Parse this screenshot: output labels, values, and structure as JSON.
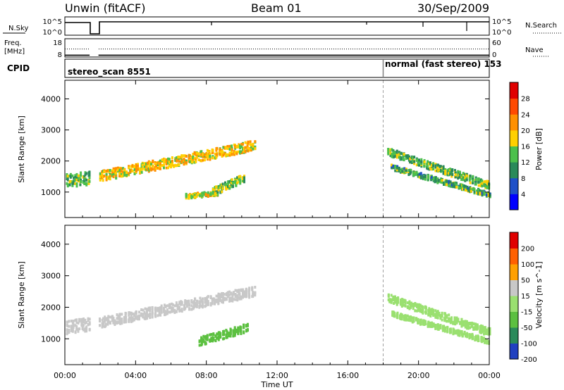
{
  "header": {
    "station": "Unwin (fitACF)",
    "beam": "Beam 01",
    "date": "30/Sep/2009"
  },
  "noise_panel": {
    "left_label": "N.Sky",
    "right_label": "N.Search",
    "left_ticks": [
      "10^5",
      "10^0"
    ],
    "right_ticks": [
      "10^5",
      "10^0"
    ]
  },
  "freq_panel": {
    "left_label_line1": "Freq.",
    "left_label_line2": "[MHz]",
    "right_label": "Nave",
    "left_ticks": [
      "18",
      "8"
    ],
    "right_ticks": [
      "60",
      "0"
    ],
    "freq_mhz": 9.5,
    "nave": 40
  },
  "cpid_panel": {
    "label": "CPID",
    "segments": [
      {
        "text": "stereo_scan 8551",
        "start_h": 0
      },
      {
        "text": "normal (fast stereo) 153",
        "start_h": 18.0
      }
    ]
  },
  "time_axis": {
    "label": "Time UT",
    "ticks": [
      "00:00",
      "04:00",
      "08:00",
      "12:00",
      "16:00",
      "20:00",
      "00:00"
    ],
    "range_h": [
      0,
      24
    ]
  },
  "data_gaps_h": [
    [
      1.4,
      1.9
    ]
  ],
  "chart_data": [
    {
      "type": "heatmap",
      "name": "power",
      "ylabel": "Slant Range [km]",
      "ylim": [
        180,
        4600
      ],
      "yticks": [
        "1000",
        "2000",
        "3000",
        "4000"
      ],
      "ytick_values": [
        1000,
        2000,
        3000,
        4000
      ],
      "colorbar": {
        "label": "Power [dB]",
        "ticks": [
          "4",
          "8",
          "12",
          "16",
          "20",
          "24",
          "28"
        ],
        "tick_values": [
          4,
          8,
          12,
          16,
          20,
          24,
          28
        ],
        "range": [
          0,
          32
        ],
        "colors": [
          "#0000ff",
          "#1e50c8",
          "#2a8a5a",
          "#4cc04c",
          "#ffd000",
          "#ff9000",
          "#ff4a00",
          "#e00000"
        ]
      },
      "bands": [
        {
          "t0": 0.0,
          "t1": 1.4,
          "r0": 1350,
          "r1": 1450,
          "w": 420,
          "v": 13
        },
        {
          "t0": 1.9,
          "t1": 10.7,
          "r0": 1500,
          "r1": 2500,
          "w": 320,
          "v": 19
        },
        {
          "t0": 6.8,
          "t1": 8.6,
          "r0": 860,
          "r1": 960,
          "w": 140,
          "v": 17
        },
        {
          "t0": 8.3,
          "t1": 10.1,
          "r0": 1000,
          "r1": 1450,
          "w": 260,
          "v": 15
        },
        {
          "t0": 18.2,
          "t1": 24.0,
          "r0": 2300,
          "r1": 1200,
          "w": 240,
          "v": 13
        },
        {
          "t0": 18.4,
          "t1": 24.0,
          "r0": 1800,
          "r1": 900,
          "w": 160,
          "v": 12
        }
      ]
    },
    {
      "type": "heatmap",
      "name": "velocity",
      "ylabel": "Slant Range [km]",
      "ylim": [
        180,
        4600
      ],
      "yticks": [
        "1000",
        "2000",
        "3000",
        "4000"
      ],
      "ytick_values": [
        1000,
        2000,
        3000,
        4000
      ],
      "colorbar": {
        "label": "Velocity [m s^-1]",
        "ticks": [
          "200",
          "100",
          "50",
          "15",
          "-15",
          "-50",
          "-100",
          "-200"
        ],
        "tick_values": [
          200,
          100,
          50,
          15,
          -15,
          -50,
          -100,
          -200
        ],
        "colors": [
          "#2040c0",
          "#2a8a5a",
          "#5cc040",
          "#9ae070",
          "#c8c8c8",
          "#ffa000",
          "#ff6000",
          "#e00000"
        ]
      },
      "bands": [
        {
          "t0": 0.0,
          "t1": 1.4,
          "r0": 1350,
          "r1": 1450,
          "w": 420,
          "v": 0
        },
        {
          "t0": 1.9,
          "t1": 10.7,
          "r0": 1500,
          "r1": 2500,
          "w": 320,
          "v": 0
        },
        {
          "t0": 7.5,
          "t1": 10.3,
          "r0": 900,
          "r1": 1350,
          "w": 260,
          "v": 70
        },
        {
          "t0": 18.2,
          "t1": 24.0,
          "r0": 2300,
          "r1": 1200,
          "w": 240,
          "v": 25
        },
        {
          "t0": 18.4,
          "t1": 24.0,
          "r0": 1800,
          "r1": 900,
          "w": 160,
          "v": 20
        }
      ]
    }
  ],
  "colors": {
    "axis": "#000000",
    "cpid_divider": "#808080"
  }
}
